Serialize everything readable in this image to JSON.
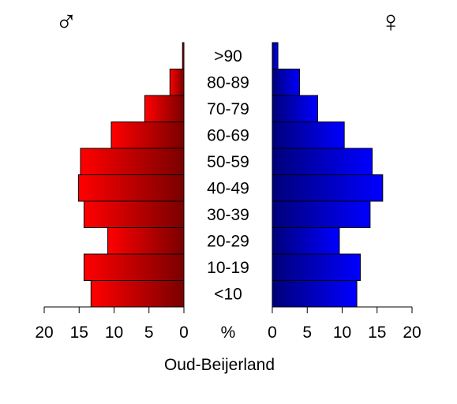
{
  "chart_data": {
    "type": "bar",
    "orientation": "horizontal-population-pyramid",
    "title": "Oud-Beijerland",
    "unit": "%",
    "male_symbol": "♂",
    "female_symbol": "♀",
    "categories": [
      "<10",
      "10-19",
      "20-29",
      "30-39",
      "40-49",
      "50-59",
      "60-69",
      "70-79",
      "80-89",
      ">90"
    ],
    "series": [
      {
        "name": "♂",
        "side": "left",
        "color": "#ee0000",
        "values": [
          13.3,
          14.3,
          10.9,
          14.3,
          15.1,
          14.8,
          10.4,
          5.6,
          2.0,
          0.2
        ]
      },
      {
        "name": "♀",
        "side": "right",
        "color": "#0000ee",
        "values": [
          12.1,
          12.6,
          9.6,
          14.0,
          15.8,
          14.3,
          10.3,
          6.5,
          3.9,
          0.8
        ]
      }
    ],
    "xlim": [
      0,
      20
    ],
    "ticks": [
      0,
      5,
      10,
      15,
      20
    ]
  }
}
